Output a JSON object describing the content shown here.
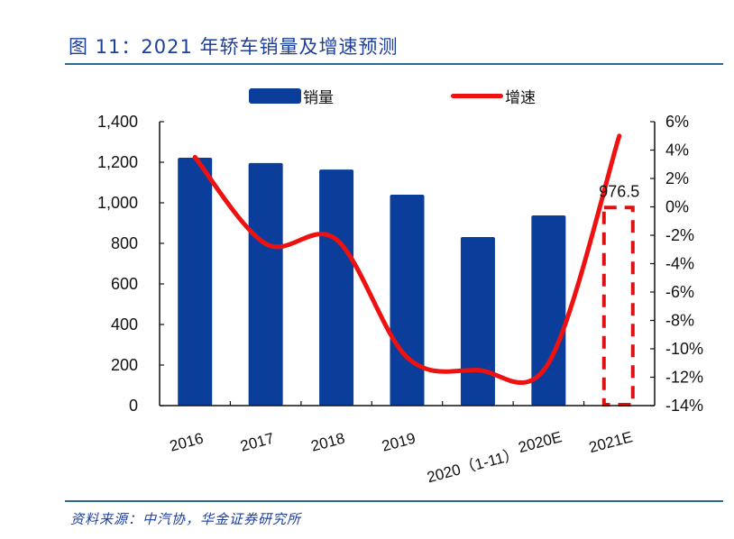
{
  "header": {
    "title": "图 11：2021 年轿车销量及增速预测"
  },
  "legend": {
    "bar_label": "销量",
    "line_label": "增速"
  },
  "footer": {
    "source": "资料来源：中汽协，华金证券研究所"
  },
  "colors": {
    "title": "#1d3f9e",
    "rule": "#2a6a93",
    "bar": "#0a3e9a",
    "line": "#ee1111",
    "forecast_box": "#dd1111"
  },
  "annotation": {
    "forecast_label": "976.5"
  },
  "chart_data": {
    "type": "bar+line",
    "title": "图 11：2021 年轿车销量及增速预测",
    "categories": [
      "2016",
      "2017",
      "2018",
      "2019",
      "2020（1-11）",
      "2020E",
      "2021E"
    ],
    "series": [
      {
        "name": "销量",
        "type": "bar",
        "axis": "left",
        "values": [
          1222,
          1196,
          1164,
          1040,
          831,
          938,
          976.5
        ],
        "forecast_last_dashed": true
      },
      {
        "name": "增速",
        "type": "line",
        "axis": "right",
        "unit": "%",
        "values": [
          3.5,
          -2.6,
          -2.3,
          -10.6,
          -11.5,
          -11.0,
          5.0
        ]
      }
    ],
    "annotations": [
      {
        "category": "2021E",
        "text": "976.5",
        "style": "dashed red outline bar"
      }
    ],
    "left_axis": {
      "ylim": [
        0,
        1400
      ],
      "ticks": [
        0,
        200,
        400,
        600,
        800,
        1000,
        1200,
        1400
      ],
      "tick_labels": [
        "0",
        "200",
        "400",
        "600",
        "800",
        "1,000",
        "1,200",
        "1,400"
      ]
    },
    "right_axis": {
      "ylim": [
        -14,
        6
      ],
      "ticks": [
        -14,
        -12,
        -10,
        -8,
        -6,
        -4,
        -2,
        0,
        2,
        4,
        6
      ],
      "tick_labels": [
        "-14%",
        "-12%",
        "-10%",
        "-8%",
        "-6%",
        "-4%",
        "-2%",
        "0%",
        "2%",
        "4%",
        "6%"
      ]
    },
    "xlabel": "",
    "ylabel": "",
    "grid": false,
    "legend_position": "top"
  }
}
